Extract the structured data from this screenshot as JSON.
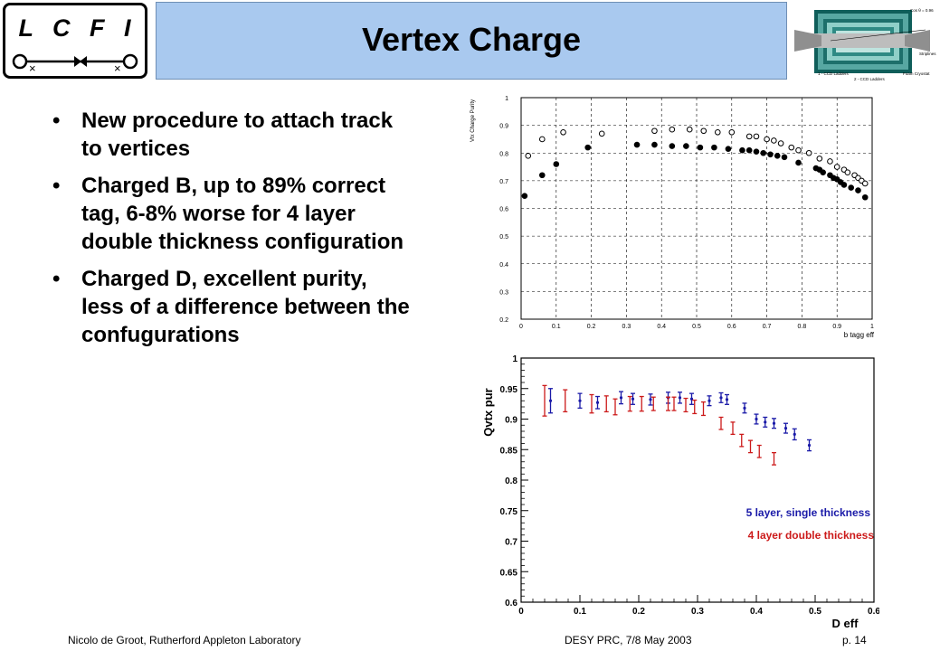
{
  "logo": {
    "text": "L C F I"
  },
  "title": "Vertex Charge",
  "detector": {
    "labels": [
      "Cos θ = 0.96",
      "Striplines",
      "1 - CCD Ladders",
      "2 - CCD Ladders",
      "Foam Cryostat"
    ]
  },
  "bullets": [
    {
      "marker": "•",
      "text": "New procedure to attach track to vertices"
    },
    {
      "marker": "•",
      "text": "Charged B, up to 89% correct tag, 6-8% worse for 4 layer double thickness configuration"
    },
    {
      "marker": "•",
      "text": "Charged D, excellent purity, less of a difference between the confugurations"
    }
  ],
  "footer": {
    "left": "Nicolo de Groot, Rutherford Appleton Laboratory",
    "middle": "DESY PRC, 7/8 May 2003",
    "right": "p. 14"
  },
  "chart_data": [
    {
      "type": "scatter",
      "title": "",
      "xlabel": "b tagg eff",
      "ylabel": "Vtx Charge Purity",
      "xlim": [
        0,
        1
      ],
      "ylim": [
        0.2,
        1
      ],
      "xticks": [
        "0",
        "0.1",
        "0.2",
        "0.3",
        "0.4",
        "0.5",
        "0.6",
        "0.7",
        "0.8",
        "0.9",
        "1"
      ],
      "yticks": [
        "0.2",
        "0.3",
        "0.4",
        "0.5",
        "0.6",
        "0.7",
        "0.8",
        "0.9",
        "1"
      ],
      "grid": true,
      "legend": "none",
      "series": [
        {
          "marker": "open-circle",
          "color": "#000000",
          "points": [
            [
              0.02,
              0.79
            ],
            [
              0.06,
              0.85
            ],
            [
              0.12,
              0.875
            ],
            [
              0.23,
              0.87
            ],
            [
              0.38,
              0.88
            ],
            [
              0.43,
              0.885
            ],
            [
              0.48,
              0.885
            ],
            [
              0.52,
              0.88
            ],
            [
              0.56,
              0.875
            ],
            [
              0.6,
              0.875
            ],
            [
              0.65,
              0.86
            ],
            [
              0.67,
              0.86
            ],
            [
              0.7,
              0.85
            ],
            [
              0.72,
              0.845
            ],
            [
              0.74,
              0.835
            ],
            [
              0.77,
              0.82
            ],
            [
              0.79,
              0.81
            ],
            [
              0.82,
              0.8
            ],
            [
              0.85,
              0.78
            ],
            [
              0.88,
              0.77
            ],
            [
              0.9,
              0.75
            ],
            [
              0.92,
              0.74
            ],
            [
              0.93,
              0.73
            ],
            [
              0.95,
              0.72
            ],
            [
              0.96,
              0.71
            ],
            [
              0.97,
              0.7
            ],
            [
              0.98,
              0.69
            ]
          ]
        },
        {
          "marker": "filled-circle",
          "color": "#000000",
          "points": [
            [
              0.01,
              0.645
            ],
            [
              0.06,
              0.72
            ],
            [
              0.1,
              0.76
            ],
            [
              0.19,
              0.82
            ],
            [
              0.33,
              0.83
            ],
            [
              0.38,
              0.83
            ],
            [
              0.43,
              0.825
            ],
            [
              0.47,
              0.825
            ],
            [
              0.51,
              0.82
            ],
            [
              0.55,
              0.82
            ],
            [
              0.59,
              0.815
            ],
            [
              0.63,
              0.81
            ],
            [
              0.65,
              0.81
            ],
            [
              0.67,
              0.805
            ],
            [
              0.69,
              0.8
            ],
            [
              0.71,
              0.795
            ],
            [
              0.73,
              0.79
            ],
            [
              0.75,
              0.785
            ],
            [
              0.79,
              0.765
            ],
            [
              0.84,
              0.745
            ],
            [
              0.85,
              0.74
            ],
            [
              0.86,
              0.73
            ],
            [
              0.88,
              0.72
            ],
            [
              0.89,
              0.71
            ],
            [
              0.9,
              0.705
            ],
            [
              0.91,
              0.695
            ],
            [
              0.92,
              0.685
            ],
            [
              0.94,
              0.675
            ],
            [
              0.96,
              0.665
            ],
            [
              0.98,
              0.64
            ]
          ]
        }
      ]
    },
    {
      "type": "scatter",
      "title": "",
      "xlabel": "D eff",
      "ylabel": "Qvtx pur",
      "xlim": [
        0,
        0.6
      ],
      "ylim": [
        0.6,
        1
      ],
      "xticks": [
        "0",
        "0.1",
        "0.2",
        "0.3",
        "0.4",
        "0.5",
        "0.6"
      ],
      "yticks": [
        "0.6",
        "0.65",
        "0.7",
        "0.75",
        "0.8",
        "0.85",
        "0.9",
        "0.95",
        "1"
      ],
      "grid": false,
      "legend": "bottom-right",
      "series": [
        {
          "name": "5 layer, single thickness",
          "color": "#1a1aa8",
          "marker": "error-bar",
          "x": [
            0.05,
            0.1,
            0.13,
            0.17,
            0.19,
            0.22,
            0.25,
            0.27,
            0.29,
            0.32,
            0.34,
            0.35,
            0.38,
            0.4,
            0.415,
            0.43,
            0.45,
            0.465,
            0.49
          ],
          "y": [
            0.93,
            0.93,
            0.927,
            0.935,
            0.933,
            0.932,
            0.935,
            0.935,
            0.933,
            0.93,
            0.935,
            0.932,
            0.918,
            0.9,
            0.895,
            0.893,
            0.885,
            0.875,
            0.857
          ],
          "err": [
            0.02,
            0.012,
            0.01,
            0.01,
            0.009,
            0.009,
            0.009,
            0.009,
            0.009,
            0.008,
            0.008,
            0.008,
            0.008,
            0.008,
            0.008,
            0.008,
            0.008,
            0.009,
            0.009
          ]
        },
        {
          "name": "4 layer double thickness",
          "color": "#cc1a1a",
          "marker": "error-bar",
          "x": [
            0.04,
            0.075,
            0.12,
            0.145,
            0.16,
            0.185,
            0.205,
            0.225,
            0.25,
            0.26,
            0.28,
            0.295,
            0.31,
            0.34,
            0.36,
            0.375,
            0.39,
            0.405,
            0.43
          ],
          "y": [
            0.93,
            0.93,
            0.925,
            0.925,
            0.92,
            0.925,
            0.925,
            0.925,
            0.925,
            0.925,
            0.923,
            0.92,
            0.917,
            0.893,
            0.885,
            0.865,
            0.855,
            0.847,
            0.835
          ],
          "err": [
            0.025,
            0.018,
            0.015,
            0.013,
            0.013,
            0.012,
            0.012,
            0.011,
            0.011,
            0.011,
            0.011,
            0.011,
            0.011,
            0.01,
            0.01,
            0.01,
            0.01,
            0.01,
            0.01
          ]
        }
      ]
    }
  ]
}
